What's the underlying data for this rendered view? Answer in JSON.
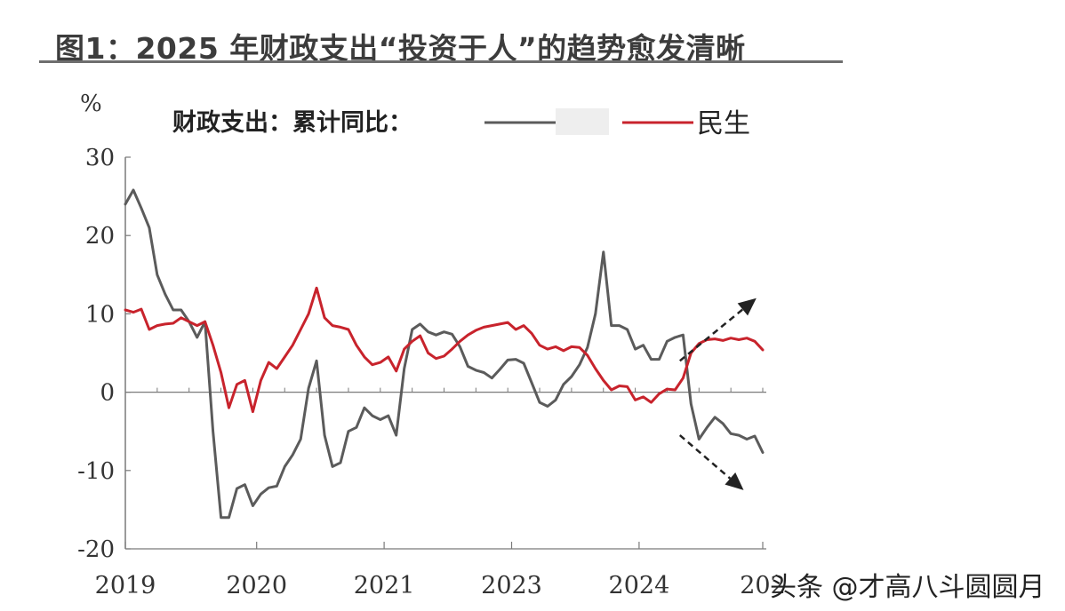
{
  "figure": {
    "title": "图1：2025 年财政支出“投资于人”的趋势愈发清晰"
  },
  "watermark": "头条 @才高八斗圆圆月",
  "colors": {
    "gray": "#5b5b5b",
    "red": "#c8232c",
    "axis": "#7a7a7a",
    "arrow": "#222222"
  },
  "chart_data": {
    "type": "line",
    "ylabel": "%",
    "legend_prefix": "财政支出：累计同比：",
    "legend_position": "top",
    "ylim": [
      -20,
      30
    ],
    "yticks": [
      30,
      20,
      10,
      0,
      -10,
      -20
    ],
    "xlim": [
      0,
      100
    ],
    "xticks": [
      {
        "label": "2019",
        "x": 0
      },
      {
        "label": "2020",
        "x": 20.6
      },
      {
        "label": "2021",
        "x": 40.6
      },
      {
        "label": "2023",
        "x": 60.6
      },
      {
        "label": "2024",
        "x": 80.6
      },
      {
        "label": "202",
        "x": 100
      }
    ],
    "series": [
      {
        "name": "",
        "color": "#5b5b5b",
        "values": [
          24,
          25.8,
          23.5,
          21,
          15,
          12.5,
          10.5,
          10.5,
          9,
          7,
          9,
          -5,
          -16,
          -16,
          -12.3,
          -11.8,
          -14.5,
          -13,
          -12.2,
          -12,
          -9.5,
          -8,
          -6,
          0.5,
          4,
          -5.5,
          -9.5,
          -9,
          -5,
          -4.5,
          -2,
          -3,
          -3.5,
          -3,
          -5.5,
          3,
          8,
          8.7,
          7.7,
          7.3,
          7.7,
          7.4,
          5.8,
          3.3,
          2.8,
          2.5,
          1.8,
          2.9,
          4.1,
          4.2,
          3.7,
          1.2,
          -1.3,
          -1.8,
          -1,
          1,
          2,
          3.5,
          5.7,
          10,
          17.9,
          8.5,
          8.5,
          8,
          5.5,
          6,
          4.2,
          4.2,
          6.5,
          7,
          7.3,
          -1.5,
          -6,
          -4.5,
          -3.2,
          -4,
          -5.3,
          -5.5,
          -6,
          -5.6,
          -7.7
        ]
      },
      {
        "name": "民生",
        "color": "#c8232c",
        "values": [
          10.5,
          10.2,
          10.6,
          8,
          8.5,
          8.7,
          8.8,
          9.5,
          9,
          8.5,
          9,
          6,
          2.5,
          -2,
          1,
          1.5,
          -2.5,
          1.5,
          3.8,
          3,
          4.5,
          6,
          8,
          10,
          13.3,
          9.5,
          8.5,
          8.3,
          8,
          6,
          4.5,
          3.5,
          3.8,
          4.5,
          2.7,
          5.5,
          6.5,
          7.2,
          5,
          4.3,
          4.6,
          5.5,
          6.5,
          7.3,
          7.9,
          8.3,
          8.5,
          8.7,
          8.9,
          8,
          8.5,
          7.5,
          6,
          5.5,
          5.8,
          5.3,
          5.8,
          5.7,
          4.7,
          3,
          1.5,
          0.3,
          0.8,
          0.7,
          -1,
          -0.6,
          -1.3,
          -0.2,
          0.4,
          0.3,
          1.8,
          5,
          6.2,
          6.7,
          6.8,
          6.6,
          6.9,
          6.7,
          6.9,
          6.5,
          5.4
        ]
      }
    ],
    "annotations": [
      {
        "type": "dashed-arrow",
        "direction": "up",
        "from": [
          87,
          4
        ],
        "to": [
          99,
          12
        ]
      },
      {
        "type": "dashed-arrow",
        "direction": "down",
        "from": [
          87,
          -5.5
        ],
        "to": [
          97,
          -12.5
        ]
      }
    ]
  }
}
